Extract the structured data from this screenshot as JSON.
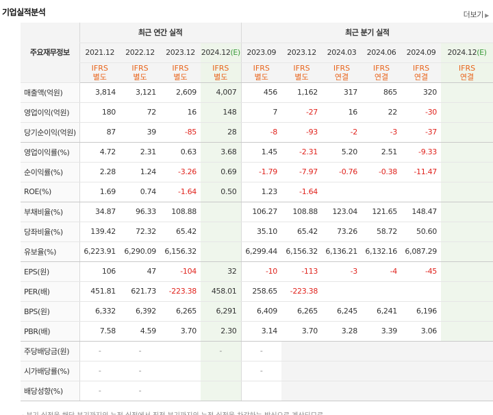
{
  "section": {
    "title": "기업실적분석",
    "more_label": "더보기"
  },
  "header": {
    "item_label": "주요재무정보",
    "annual_group": "최근 연간 실적",
    "quarter_group": "최근 분기 실적",
    "periods": [
      {
        "label": "2021.12",
        "estimate": false,
        "ifrs": [
          "IFRS",
          "별도"
        ]
      },
      {
        "label": "2022.12",
        "estimate": false,
        "ifrs": [
          "IFRS",
          "별도"
        ]
      },
      {
        "label": "2023.12",
        "estimate": false,
        "ifrs": [
          "IFRS",
          "별도"
        ]
      },
      {
        "label": "2024.12",
        "estimate": true,
        "est_mark": "(E)",
        "ifrs": [
          "IFRS",
          "별도"
        ]
      },
      {
        "label": "2023.09",
        "estimate": false,
        "ifrs": [
          "IFRS",
          "별도"
        ]
      },
      {
        "label": "2023.12",
        "estimate": false,
        "ifrs": [
          "IFRS",
          "별도"
        ]
      },
      {
        "label": "2024.03",
        "estimate": false,
        "ifrs": [
          "IFRS",
          "연결"
        ]
      },
      {
        "label": "2024.06",
        "estimate": false,
        "ifrs": [
          "IFRS",
          "연결"
        ]
      },
      {
        "label": "2024.09",
        "estimate": false,
        "ifrs": [
          "IFRS",
          "연결"
        ]
      },
      {
        "label": "2024.12",
        "estimate": true,
        "est_mark": "(E)",
        "ifrs": [
          "IFRS",
          "연결"
        ]
      }
    ]
  },
  "rows": [
    {
      "label": "매출액(억원)",
      "values": [
        "3,814",
        "3,121",
        "2,609",
        "4,007",
        "456",
        "1,162",
        "317",
        "865",
        "320",
        ""
      ]
    },
    {
      "label": "영업이익(억원)",
      "values": [
        "180",
        "72",
        "16",
        "148",
        "7",
        "-27",
        "16",
        "22",
        "-30",
        ""
      ]
    },
    {
      "label": "당기순이익(억원)",
      "values": [
        "87",
        "39",
        "-85",
        "28",
        "-8",
        "-93",
        "-2",
        "-3",
        "-37",
        ""
      ],
      "group_end": true
    },
    {
      "label": "영업이익률(%)",
      "values": [
        "4.72",
        "2.31",
        "0.63",
        "3.68",
        "1.45",
        "-2.31",
        "5.20",
        "2.51",
        "-9.33",
        ""
      ]
    },
    {
      "label": "순이익률(%)",
      "values": [
        "2.28",
        "1.24",
        "-3.26",
        "0.69",
        "-1.79",
        "-7.97",
        "-0.76",
        "-0.38",
        "-11.47",
        ""
      ]
    },
    {
      "label": "ROE(%)",
      "values": [
        "1.69",
        "0.74",
        "-1.64",
        "0.50",
        "1.23",
        "-1.64",
        "",
        "",
        "",
        ""
      ],
      "group_end": true
    },
    {
      "label": "부채비율(%)",
      "values": [
        "34.87",
        "96.33",
        "108.88",
        "",
        "106.27",
        "108.88",
        "123.04",
        "121.65",
        "148.47",
        ""
      ]
    },
    {
      "label": "당좌비율(%)",
      "values": [
        "139.42",
        "72.32",
        "65.42",
        "",
        "35.10",
        "65.42",
        "73.26",
        "58.72",
        "50.60",
        ""
      ]
    },
    {
      "label": "유보율(%)",
      "values": [
        "6,223.91",
        "6,290.09",
        "6,156.32",
        "",
        "6,299.44",
        "6,156.32",
        "6,136.21",
        "6,132.16",
        "6,087.29",
        ""
      ],
      "group_end": true
    },
    {
      "label": "EPS(원)",
      "values": [
        "106",
        "47",
        "-104",
        "32",
        "-10",
        "-113",
        "-3",
        "-4",
        "-45",
        ""
      ]
    },
    {
      "label": "PER(배)",
      "values": [
        "451.81",
        "621.73",
        "-223.38",
        "458.01",
        "258.65",
        "-223.38",
        "",
        "",
        "",
        ""
      ]
    },
    {
      "label": "BPS(원)",
      "values": [
        "6,332",
        "6,392",
        "6,265",
        "6,291",
        "6,409",
        "6,265",
        "6,245",
        "6,241",
        "6,196",
        ""
      ]
    },
    {
      "label": "PBR(배)",
      "values": [
        "7.58",
        "4.59",
        "3.70",
        "2.30",
        "3.14",
        "3.70",
        "3.28",
        "3.39",
        "3.06",
        ""
      ],
      "group_end": true
    },
    {
      "label": "주당배당금(원)",
      "values": [
        "-",
        "-",
        "",
        "-",
        "-",
        "",
        "",
        "",
        "",
        ""
      ],
      "empty_from": 5
    },
    {
      "label": "시가배당률(%)",
      "values": [
        "-",
        "-",
        "",
        "",
        "-",
        "",
        "",
        "",
        "",
        ""
      ],
      "empty_from": 5
    },
    {
      "label": "배당성향(%)",
      "values": [
        "-",
        "-",
        "",
        "",
        "",
        "",
        "",
        "",
        "",
        ""
      ],
      "empty_from": 5,
      "group_end": true
    }
  ],
  "footnote": "· 분기 실적을 해당 분기까지의 누적 실적에서 직전 분기까지의 누적 실적을 차감하는 방식으로 계산되므로",
  "colors": {
    "negative": "#e0231d",
    "ifrs": "#e8641b",
    "estimate_bg": "#eff6ec",
    "estimate_mark": "#3a9a3a"
  }
}
